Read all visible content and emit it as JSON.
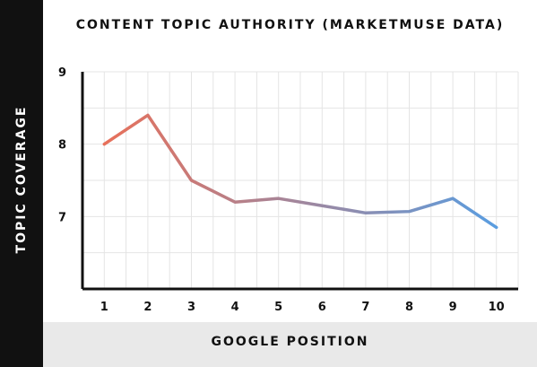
{
  "chart_data": {
    "type": "line",
    "title": "CONTENT TOPIC AUTHORITY (MARKETMUSE DATA)",
    "xlabel": "GOOGLE POSITION",
    "ylabel": "TOPIC COVERAGE",
    "x": [
      1,
      2,
      3,
      4,
      5,
      6,
      7,
      8,
      9,
      10
    ],
    "series": [
      {
        "values": [
          8.0,
          8.4,
          7.5,
          7.2,
          7.25,
          7.15,
          7.05,
          7.07,
          7.25,
          6.85
        ]
      }
    ],
    "ylim": [
      6.0,
      9.0
    ],
    "xlim": [
      0.5,
      10.5
    ],
    "yticks": [
      7,
      8,
      9
    ],
    "xticks": [
      1,
      2,
      3,
      4,
      5,
      6,
      7,
      8,
      9,
      10
    ],
    "grid": true,
    "legend": "none",
    "line_gradient": [
      "#e8705a",
      "#5a9de0"
    ]
  }
}
